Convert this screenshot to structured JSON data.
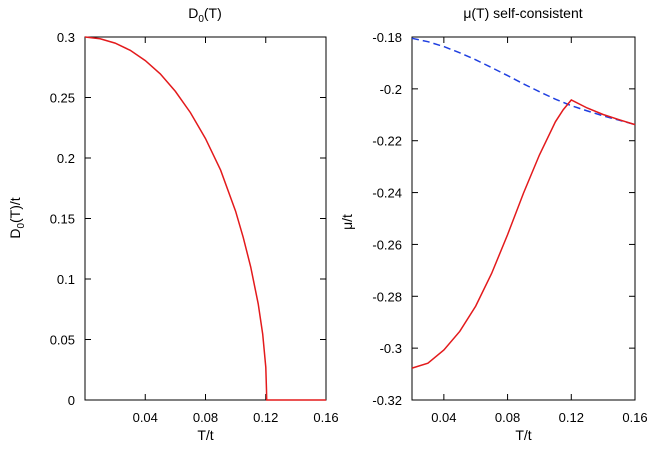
{
  "chart_data": [
    {
      "type": "line",
      "title": "D0(T)",
      "title_base": "D",
      "title_sub": "0",
      "title_rest": "(T)",
      "xlabel": "T/t",
      "ylabel": "D0(T)/t",
      "ylabel_base": "D",
      "ylabel_sub": "0",
      "ylabel_rest": "(T)/t",
      "xlim": [
        0.0,
        0.16
      ],
      "ylim": [
        0,
        0.3
      ],
      "xticks": [
        0.04,
        0.08,
        0.12,
        0.16
      ],
      "xtick_labels": [
        "0.04",
        "0.08",
        "0.12",
        "0.16"
      ],
      "yticks": [
        0,
        0.05,
        0.1,
        0.15,
        0.2,
        0.25,
        0.3
      ],
      "ytick_labels": [
        "0",
        "0.05",
        "0.1",
        "0.15",
        "0.2",
        "0.25",
        "0.3"
      ],
      "grid": false,
      "series": [
        {
          "color": "#e31a1c",
          "style": "solid",
          "x": [
            0.0,
            0.01,
            0.02,
            0.03,
            0.04,
            0.05,
            0.06,
            0.07,
            0.08,
            0.09,
            0.1,
            0.105,
            0.11,
            0.115,
            0.118,
            0.12,
            0.1205,
            0.1206,
            0.13,
            0.14,
            0.15,
            0.16
          ],
          "y": [
            0.3,
            0.2985,
            0.295,
            0.289,
            0.2805,
            0.2695,
            0.255,
            0.2375,
            0.216,
            0.19,
            0.156,
            0.1345,
            0.11,
            0.0795,
            0.0545,
            0.027,
            0.008,
            0.0,
            0.0,
            0.0,
            0.0,
            0.0
          ]
        }
      ]
    },
    {
      "type": "line",
      "title": "μ(T) self-consistent",
      "xlabel": "T/t",
      "ylabel": "μ/t",
      "xlim": [
        0.02,
        0.16
      ],
      "ylim": [
        -0.32,
        -0.18
      ],
      "xticks": [
        0.04,
        0.08,
        0.12,
        0.16
      ],
      "xtick_labels": [
        "0.04",
        "0.08",
        "0.12",
        "0.16"
      ],
      "yticks": [
        -0.32,
        -0.3,
        -0.28,
        -0.26,
        -0.24,
        -0.22,
        -0.2,
        -0.18
      ],
      "ytick_labels": [
        "-0.32",
        "-0.3",
        "-0.28",
        "-0.26",
        "-0.24",
        "-0.22",
        "-0.2",
        "-0.18"
      ],
      "grid": false,
      "series": [
        {
          "color": "#1f3fe0",
          "style": "dashed",
          "x": [
            0.02,
            0.03,
            0.04,
            0.05,
            0.06,
            0.07,
            0.08,
            0.09,
            0.1,
            0.11,
            0.12,
            0.13,
            0.14,
            0.15,
            0.16
          ],
          "y": [
            -0.1805,
            -0.1818,
            -0.1837,
            -0.1861,
            -0.1888,
            -0.1918,
            -0.1949,
            -0.1981,
            -0.2011,
            -0.204,
            -0.2065,
            -0.2085,
            -0.2104,
            -0.2121,
            -0.2138
          ]
        },
        {
          "color": "#e31a1c",
          "style": "solid",
          "x": [
            0.02,
            0.03,
            0.04,
            0.05,
            0.06,
            0.07,
            0.08,
            0.09,
            0.1,
            0.11,
            0.115,
            0.12,
            0.13,
            0.14,
            0.15,
            0.16
          ],
          "y": [
            -0.3077,
            -0.3058,
            -0.3007,
            -0.2935,
            -0.2838,
            -0.2712,
            -0.2562,
            -0.2402,
            -0.2255,
            -0.2127,
            -0.208,
            -0.2043,
            -0.2074,
            -0.2099,
            -0.2119,
            -0.2138
          ]
        }
      ]
    }
  ]
}
